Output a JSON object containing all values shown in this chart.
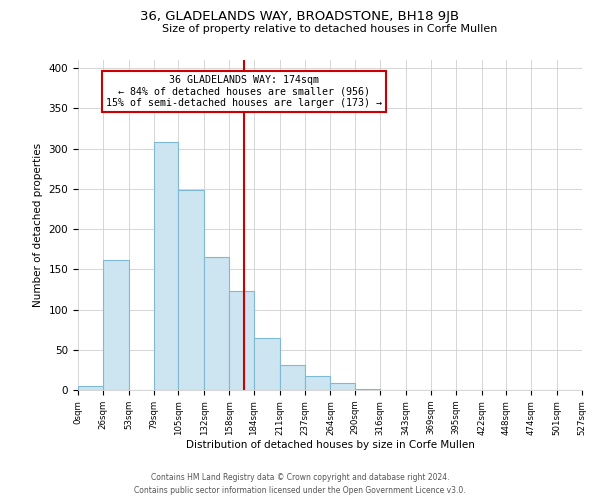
{
  "title": "36, GLADELANDS WAY, BROADSTONE, BH18 9JB",
  "subtitle": "Size of property relative to detached houses in Corfe Mullen",
  "xlabel": "Distribution of detached houses by size in Corfe Mullen",
  "ylabel": "Number of detached properties",
  "footnote1": "Contains HM Land Registry data © Crown copyright and database right 2024.",
  "footnote2": "Contains public sector information licensed under the Open Government Licence v3.0.",
  "bin_edges": [
    0,
    26,
    53,
    79,
    105,
    132,
    158,
    184,
    211,
    237,
    264,
    290,
    316,
    343,
    369,
    395,
    422,
    448,
    474,
    501,
    527
  ],
  "bin_labels": [
    "0sqm",
    "26sqm",
    "53sqm",
    "79sqm",
    "105sqm",
    "132sqm",
    "158sqm",
    "184sqm",
    "211sqm",
    "237sqm",
    "264sqm",
    "290sqm",
    "316sqm",
    "343sqm",
    "369sqm",
    "395sqm",
    "422sqm",
    "448sqm",
    "474sqm",
    "501sqm",
    "527sqm"
  ],
  "counts": [
    5,
    162,
    0,
    308,
    248,
    165,
    123,
    64,
    31,
    18,
    9,
    1,
    0,
    0,
    0,
    0,
    0,
    0,
    0,
    0
  ],
  "bar_color": "#cce5f0",
  "bar_edge_color": "#7fb9d4",
  "property_line_x": 174,
  "property_line_color": "#cc0000",
  "annotation_title": "36 GLADELANDS WAY: 174sqm",
  "annotation_line1": "← 84% of detached houses are smaller (956)",
  "annotation_line2": "15% of semi-detached houses are larger (173) →",
  "annotation_box_edge": "#cc0000",
  "ylim": [
    0,
    410
  ],
  "xlim": [
    0,
    527
  ],
  "yticks": [
    0,
    50,
    100,
    150,
    200,
    250,
    300,
    350,
    400
  ]
}
